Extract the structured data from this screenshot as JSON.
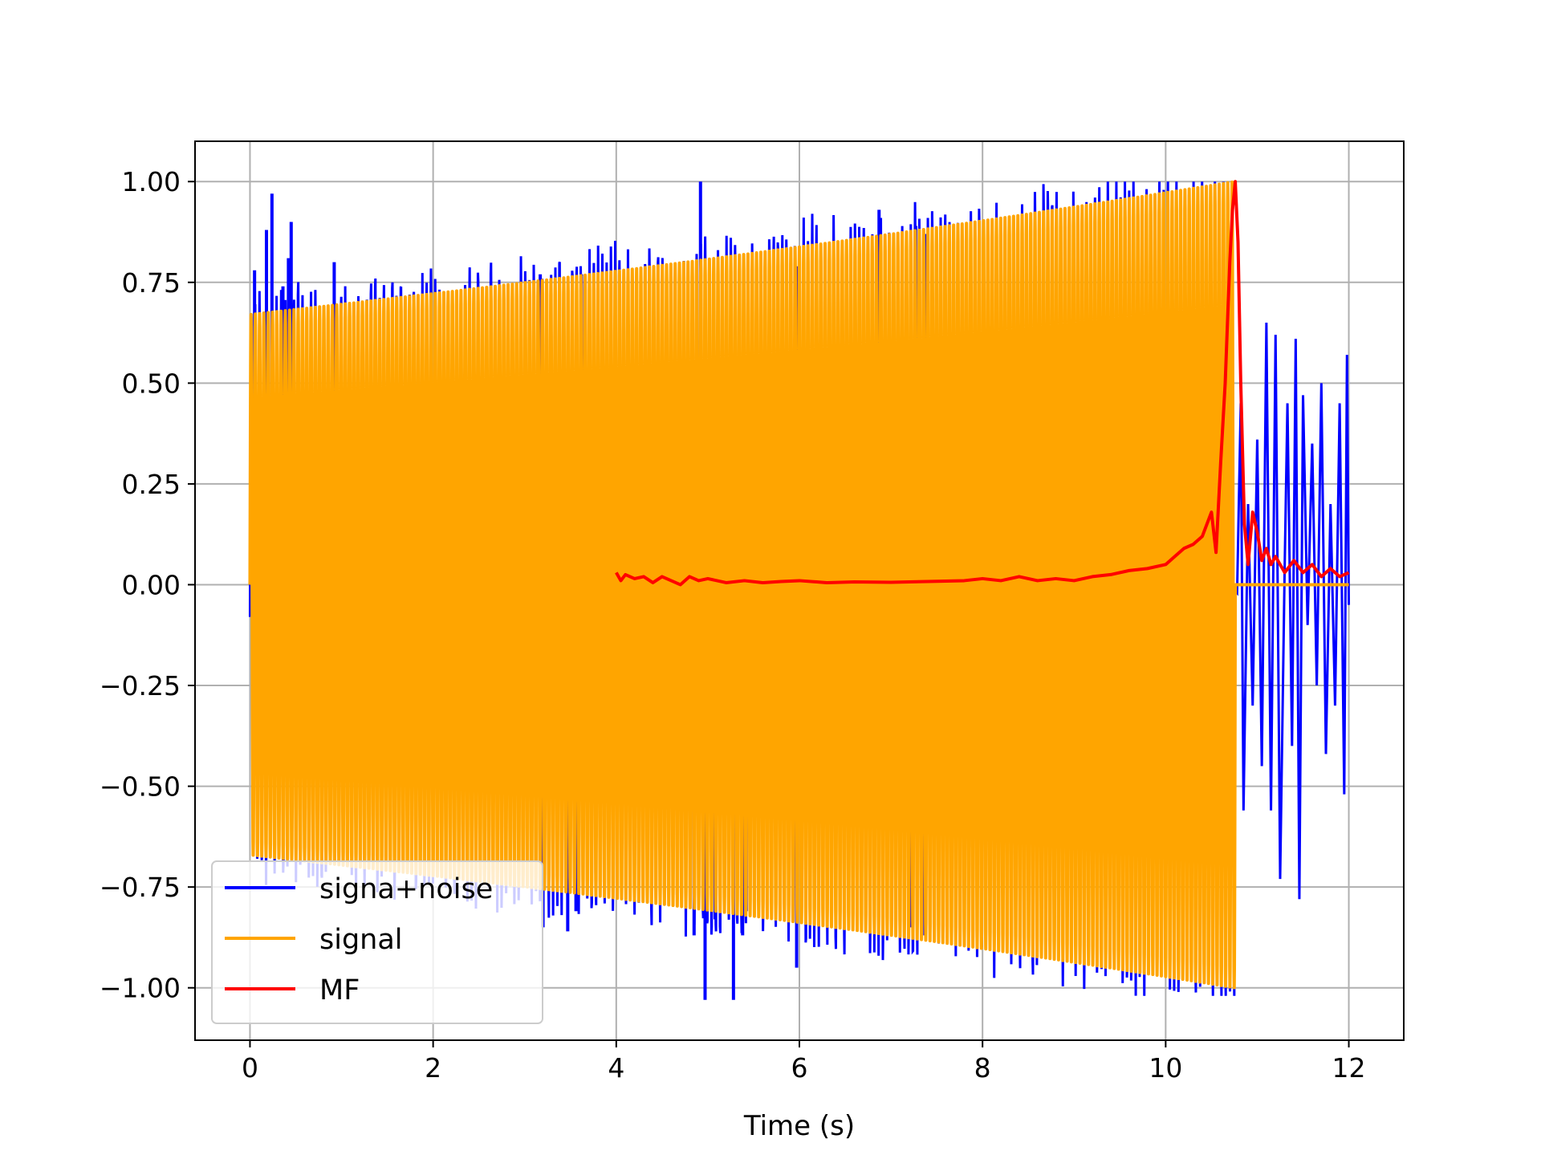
{
  "chart_data": {
    "type": "line",
    "title": "",
    "xlabel": "Time (s)",
    "ylabel": "",
    "xlim": [
      -0.6,
      12.6
    ],
    "ylim": [
      -1.13,
      1.1
    ],
    "grid": true,
    "legend_position": "lower-left",
    "x_ticks": [
      0,
      2,
      4,
      6,
      8,
      10,
      12
    ],
    "x_tick_labels": [
      "0",
      "2",
      "4",
      "6",
      "8",
      "10",
      "12"
    ],
    "y_ticks": [
      1.0,
      0.75,
      0.5,
      0.25,
      0.0,
      -0.25,
      -0.5,
      -0.75,
      -1.0
    ],
    "y_tick_labels": [
      "1.00",
      "0.75",
      "0.50",
      "0.25",
      "0.00",
      "−0.25",
      "−0.50",
      "−0.75",
      "−1.00"
    ],
    "series": [
      {
        "name": "signa+noise",
        "color": "#0000ff",
        "description_kind": "noisy_chirp",
        "x_range": [
          0,
          12
        ],
        "signal_end": 10.76,
        "spikes": [
          {
            "x": 0.05,
            "y": 0.78
          },
          {
            "x": 0.18,
            "y": 0.88
          },
          {
            "x": 0.24,
            "y": 0.97
          },
          {
            "x": 0.36,
            "y": 0.74
          },
          {
            "x": 0.42,
            "y": 0.81
          },
          {
            "x": 0.45,
            "y": 0.9
          },
          {
            "x": 0.92,
            "y": 0.8
          },
          {
            "x": 3.17,
            "y": 0.77
          },
          {
            "x": 3.62,
            "y": 0.77
          },
          {
            "x": 4.92,
            "y": 1.0
          },
          {
            "x": 5.97,
            "y": 0.79
          },
          {
            "x": 6.87,
            "y": 0.93
          },
          {
            "x": 7.27,
            "y": 0.89
          },
          {
            "x": 7.37,
            "y": 0.87
          },
          {
            "x": 3.2,
            "y": -0.85
          },
          {
            "x": 3.47,
            "y": -0.86
          },
          {
            "x": 3.56,
            "y": -0.81
          },
          {
            "x": 4.85,
            "y": -0.87
          },
          {
            "x": 4.97,
            "y": -1.03
          },
          {
            "x": 5.08,
            "y": -0.83
          },
          {
            "x": 5.28,
            "y": -1.03
          },
          {
            "x": 5.38,
            "y": -0.87
          },
          {
            "x": 5.42,
            "y": -0.81
          },
          {
            "x": 5.97,
            "y": -0.95
          },
          {
            "x": 7.22,
            "y": -0.85
          },
          {
            "x": 7.37,
            "y": -0.87
          }
        ],
        "tail_noise": [
          {
            "x": 10.78,
            "y": -0.02
          },
          {
            "x": 10.82,
            "y": 0.45
          },
          {
            "x": 10.85,
            "y": -0.56
          },
          {
            "x": 10.9,
            "y": 0.2
          },
          {
            "x": 10.95,
            "y": -0.3
          },
          {
            "x": 11.0,
            "y": 0.36
          },
          {
            "x": 11.05,
            "y": -0.45
          },
          {
            "x": 11.1,
            "y": 0.65
          },
          {
            "x": 11.15,
            "y": -0.56
          },
          {
            "x": 11.2,
            "y": 0.62
          },
          {
            "x": 11.25,
            "y": -0.73
          },
          {
            "x": 11.3,
            "y": 0.05
          },
          {
            "x": 11.33,
            "y": 0.45
          },
          {
            "x": 11.38,
            "y": -0.4
          },
          {
            "x": 11.42,
            "y": 0.61
          },
          {
            "x": 11.46,
            "y": -0.78
          },
          {
            "x": 11.5,
            "y": 0.47
          },
          {
            "x": 11.55,
            "y": -0.1
          },
          {
            "x": 11.6,
            "y": 0.35
          },
          {
            "x": 11.65,
            "y": -0.25
          },
          {
            "x": 11.7,
            "y": 0.5
          },
          {
            "x": 11.75,
            "y": -0.42
          },
          {
            "x": 11.8,
            "y": 0.2
          },
          {
            "x": 11.85,
            "y": -0.3
          },
          {
            "x": 11.9,
            "y": 0.45
          },
          {
            "x": 11.95,
            "y": -0.52
          },
          {
            "x": 11.98,
            "y": 0.57
          },
          {
            "x": 12.0,
            "y": -0.05
          }
        ]
      },
      {
        "name": "signal",
        "color": "#ffa500",
        "description_kind": "chirp",
        "x_range": [
          0,
          12
        ],
        "signal_end": 10.76,
        "amplitude_start": 0.67,
        "amplitude_end": 1.0,
        "cycles": 230
      },
      {
        "name": "MF",
        "color": "#ff0000",
        "x": [
          4.0,
          4.05,
          4.1,
          4.2,
          4.3,
          4.4,
          4.5,
          4.6,
          4.7,
          4.8,
          4.9,
          5.0,
          5.2,
          5.4,
          5.6,
          5.8,
          6.0,
          6.3,
          6.6,
          7.0,
          7.4,
          7.8,
          8.0,
          8.2,
          8.4,
          8.6,
          8.8,
          9.0,
          9.2,
          9.4,
          9.6,
          9.8,
          10.0,
          10.1,
          10.2,
          10.3,
          10.4,
          10.5,
          10.55,
          10.6,
          10.65,
          10.7,
          10.73,
          10.76,
          10.79,
          10.82,
          10.86,
          10.9,
          10.95,
          11.0,
          11.05,
          11.1,
          11.15,
          11.2,
          11.3,
          11.4,
          11.5,
          11.6,
          11.7,
          11.8,
          11.9,
          12.0
        ],
        "y": [
          0.03,
          0.01,
          0.025,
          0.015,
          0.02,
          0.005,
          0.02,
          0.01,
          0.0,
          0.02,
          0.01,
          0.015,
          0.005,
          0.01,
          0.005,
          0.008,
          0.01,
          0.005,
          0.007,
          0.006,
          0.008,
          0.01,
          0.015,
          0.01,
          0.02,
          0.01,
          0.015,
          0.01,
          0.02,
          0.025,
          0.035,
          0.04,
          0.05,
          0.07,
          0.09,
          0.1,
          0.12,
          0.18,
          0.08,
          0.3,
          0.5,
          0.8,
          0.93,
          1.0,
          0.85,
          0.5,
          0.15,
          0.05,
          0.18,
          0.13,
          0.06,
          0.09,
          0.05,
          0.07,
          0.03,
          0.06,
          0.03,
          0.05,
          0.02,
          0.04,
          0.02,
          0.03
        ]
      }
    ]
  }
}
